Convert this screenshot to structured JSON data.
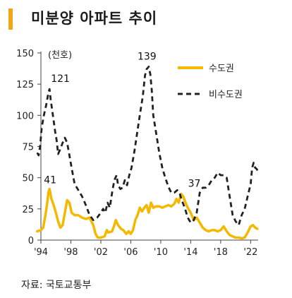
{
  "title": "미분양 아파트 추이",
  "source": "자료: 국토교통부",
  "chart_data": {
    "type": "line",
    "unit": "(천호)",
    "ylim": [
      0,
      150
    ],
    "yticks": [
      0,
      25,
      50,
      75,
      100,
      125,
      150
    ],
    "xlim": [
      1994,
      2023
    ],
    "xticks": [
      {
        "value": 1994,
        "label": "'94"
      },
      {
        "value": 1998,
        "label": "'98"
      },
      {
        "value": 2002,
        "label": "'02"
      },
      {
        "value": 2006,
        "label": "'06"
      },
      {
        "value": 2010,
        "label": "'10"
      },
      {
        "value": 2014,
        "label": "'14"
      },
      {
        "value": 2018,
        "label": "'18"
      },
      {
        "value": 2022,
        "label": "'22"
      }
    ],
    "grid": false,
    "legend_position": "top-right",
    "colors": {
      "capital": "#F5B800",
      "noncapital": "#222222"
    },
    "series": [
      {
        "key": "capital",
        "name": "수도권",
        "points": [
          [
            1993.5,
            7
          ],
          [
            1994.0,
            8
          ],
          [
            1994.3,
            10
          ],
          [
            1994.6,
            20
          ],
          [
            1994.85,
            30
          ],
          [
            1995.0,
            38
          ],
          [
            1995.15,
            41
          ],
          [
            1995.4,
            33
          ],
          [
            1995.7,
            28
          ],
          [
            1996.0,
            22
          ],
          [
            1996.3,
            15
          ],
          [
            1996.6,
            10
          ],
          [
            1996.9,
            12
          ],
          [
            1997.2,
            22
          ],
          [
            1997.5,
            32
          ],
          [
            1997.8,
            30
          ],
          [
            1998.1,
            22
          ],
          [
            1998.5,
            20
          ],
          [
            1999.0,
            20
          ],
          [
            1999.5,
            18
          ],
          [
            2000.0,
            17
          ],
          [
            2000.5,
            18
          ],
          [
            2001.0,
            12
          ],
          [
            2001.3,
            5
          ],
          [
            2001.6,
            2
          ],
          [
            2002.0,
            2
          ],
          [
            2002.5,
            3
          ],
          [
            2002.8,
            8
          ],
          [
            2003.0,
            6
          ],
          [
            2003.5,
            7
          ],
          [
            2003.8,
            12
          ],
          [
            2004.0,
            16
          ],
          [
            2004.3,
            12
          ],
          [
            2004.7,
            9
          ],
          [
            2005.0,
            8
          ],
          [
            2005.4,
            5
          ],
          [
            2005.7,
            7
          ],
          [
            2006.0,
            5
          ],
          [
            2006.3,
            8
          ],
          [
            2006.6,
            16
          ],
          [
            2006.9,
            20
          ],
          [
            2007.2,
            26
          ],
          [
            2007.5,
            23
          ],
          [
            2007.8,
            26
          ],
          [
            2008.1,
            28
          ],
          [
            2008.4,
            22
          ],
          [
            2008.7,
            30
          ],
          [
            2009.0,
            26
          ],
          [
            2009.4,
            27
          ],
          [
            2009.8,
            27
          ],
          [
            2010.2,
            26
          ],
          [
            2010.6,
            27
          ],
          [
            2011.0,
            28
          ],
          [
            2011.4,
            27
          ],
          [
            2011.8,
            29
          ],
          [
            2012.1,
            33
          ],
          [
            2012.4,
            30
          ],
          [
            2012.7,
            37
          ],
          [
            2013.0,
            35
          ],
          [
            2013.3,
            30
          ],
          [
            2013.6,
            26
          ],
          [
            2014.0,
            22
          ],
          [
            2014.4,
            16
          ],
          [
            2014.8,
            18
          ],
          [
            2015.2,
            14
          ],
          [
            2015.6,
            10
          ],
          [
            2016.0,
            8
          ],
          [
            2016.4,
            7
          ],
          [
            2016.8,
            8
          ],
          [
            2017.2,
            8
          ],
          [
            2017.6,
            7
          ],
          [
            2018.0,
            8
          ],
          [
            2018.4,
            11
          ],
          [
            2018.8,
            7
          ],
          [
            2019.2,
            4
          ],
          [
            2019.6,
            3
          ],
          [
            2020.0,
            2
          ],
          [
            2020.4,
            2
          ],
          [
            2020.8,
            1.5
          ],
          [
            2021.2,
            2
          ],
          [
            2021.6,
            6
          ],
          [
            2022.0,
            11
          ],
          [
            2022.3,
            12
          ],
          [
            2022.6,
            10
          ],
          [
            2022.9,
            9
          ]
        ]
      },
      {
        "key": "noncapital",
        "name": "비수도권",
        "points": [
          [
            1993.5,
            70
          ],
          [
            1993.7,
            68
          ],
          [
            1993.9,
            75
          ],
          [
            1994.1,
            90
          ],
          [
            1994.4,
            100
          ],
          [
            1994.7,
            108
          ],
          [
            1995.0,
            118
          ],
          [
            1995.15,
            121
          ],
          [
            1995.3,
            113
          ],
          [
            1995.6,
            100
          ],
          [
            1995.9,
            87
          ],
          [
            1996.1,
            80
          ],
          [
            1996.3,
            69
          ],
          [
            1996.6,
            73
          ],
          [
            1996.9,
            78
          ],
          [
            1997.2,
            82
          ],
          [
            1997.5,
            78
          ],
          [
            1997.8,
            68
          ],
          [
            1998.1,
            58
          ],
          [
            1998.5,
            45
          ],
          [
            1999.0,
            40
          ],
          [
            1999.5,
            35
          ],
          [
            2000.0,
            28
          ],
          [
            2000.5,
            20
          ],
          [
            2001.0,
            16
          ],
          [
            2001.5,
            18
          ],
          [
            2002.0,
            22
          ],
          [
            2002.3,
            25
          ],
          [
            2002.6,
            22
          ],
          [
            2002.9,
            30
          ],
          [
            2003.2,
            26
          ],
          [
            2003.5,
            38
          ],
          [
            2003.8,
            48
          ],
          [
            2004.1,
            52
          ],
          [
            2004.3,
            44
          ],
          [
            2004.6,
            41
          ],
          [
            2004.9,
            42
          ],
          [
            2005.2,
            48
          ],
          [
            2005.5,
            44
          ],
          [
            2005.8,
            52
          ],
          [
            2006.1,
            58
          ],
          [
            2006.5,
            72
          ],
          [
            2006.9,
            88
          ],
          [
            2007.2,
            100
          ],
          [
            2007.6,
            115
          ],
          [
            2007.9,
            132
          ],
          [
            2008.1,
            137
          ],
          [
            2008.4,
            139
          ],
          [
            2008.6,
            133
          ],
          [
            2008.8,
            120
          ],
          [
            2009.0,
            100
          ],
          [
            2009.4,
            85
          ],
          [
            2009.8,
            70
          ],
          [
            2010.2,
            58
          ],
          [
            2010.6,
            50
          ],
          [
            2011.0,
            43
          ],
          [
            2011.4,
            38
          ],
          [
            2011.8,
            38
          ],
          [
            2012.2,
            40
          ],
          [
            2012.5,
            38
          ],
          [
            2012.8,
            32
          ],
          [
            2013.2,
            26
          ],
          [
            2013.6,
            18
          ],
          [
            2014.0,
            14
          ],
          [
            2014.4,
            16
          ],
          [
            2014.8,
            22
          ],
          [
            2015.2,
            38
          ],
          [
            2015.6,
            42
          ],
          [
            2016.0,
            42
          ],
          [
            2016.4,
            44
          ],
          [
            2016.8,
            48
          ],
          [
            2017.2,
            50
          ],
          [
            2017.6,
            54
          ],
          [
            2018.0,
            52
          ],
          [
            2018.4,
            52
          ],
          [
            2018.8,
            50
          ],
          [
            2019.2,
            35
          ],
          [
            2019.6,
            20
          ],
          [
            2020.0,
            15
          ],
          [
            2020.4,
            12
          ],
          [
            2020.8,
            20
          ],
          [
            2021.2,
            25
          ],
          [
            2021.6,
            35
          ],
          [
            2022.0,
            45
          ],
          [
            2022.2,
            58
          ],
          [
            2022.4,
            62
          ],
          [
            2022.6,
            58
          ],
          [
            2022.8,
            57
          ],
          [
            2023.0,
            55
          ]
        ]
      }
    ],
    "annotations": [
      {
        "text": "121",
        "x": 1995.15,
        "y": 121,
        "dx": 2,
        "dy": -10
      },
      {
        "text": "41",
        "x": 1995.15,
        "y": 41,
        "dx": -8,
        "dy": -8
      },
      {
        "text": "139",
        "x": 2008.4,
        "y": 139,
        "dx": -16,
        "dy": -10
      },
      {
        "text": "37",
        "x": 2012.7,
        "y": 37,
        "dx": 10,
        "dy": -10
      }
    ]
  }
}
